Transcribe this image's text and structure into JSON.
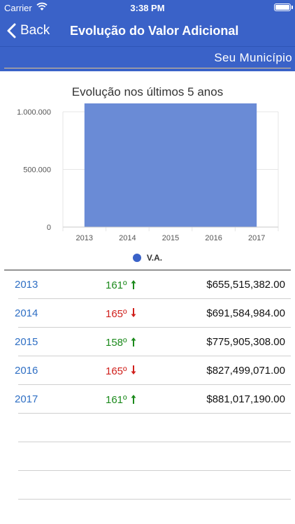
{
  "status_bar": {
    "carrier": "Carrier",
    "time": "3:38 PM",
    "wifi_icon": "wifi-icon",
    "battery_icon": "battery-icon"
  },
  "nav": {
    "back_label": "Back",
    "title": "Evolução do Valor Adicional"
  },
  "subheader": {
    "municipality": "Seu Município"
  },
  "chart_data": {
    "type": "area",
    "title": "Evolução nos últimos 5 anos",
    "categories": [
      "2013",
      "2014",
      "2015",
      "2016",
      "2017"
    ],
    "series": [
      {
        "name": "V.A.",
        "values": [
          655515382.0,
          691584984.0,
          775905308.0,
          827499071.0,
          881017190.0
        ],
        "color": "#3a62c8"
      }
    ],
    "ylim": [
      0,
      1000000
    ],
    "y_ticks": [
      {
        "value": 0,
        "label": "0"
      },
      {
        "value": 500000,
        "label": "500.000"
      },
      {
        "value": 1000000,
        "label": "1.000.000"
      }
    ],
    "grid": true,
    "legend_position": "bottom"
  },
  "table": {
    "rows": [
      {
        "year": "2013",
        "rank": "161º",
        "trend": "up",
        "value": "$655,515,382.00"
      },
      {
        "year": "2014",
        "rank": "165º",
        "trend": "down",
        "value": "$691,584,984.00"
      },
      {
        "year": "2015",
        "rank": "158º",
        "trend": "up",
        "value": "$775,905,308.00"
      },
      {
        "year": "2016",
        "rank": "165º",
        "trend": "down",
        "value": "$827,499,071.00"
      },
      {
        "year": "2017",
        "rank": "161º",
        "trend": "up",
        "value": "$881,017,190.00"
      }
    ],
    "colors": {
      "up": "#1c8a1c",
      "down": "#d0201c",
      "year": "#2f6fc4"
    }
  }
}
